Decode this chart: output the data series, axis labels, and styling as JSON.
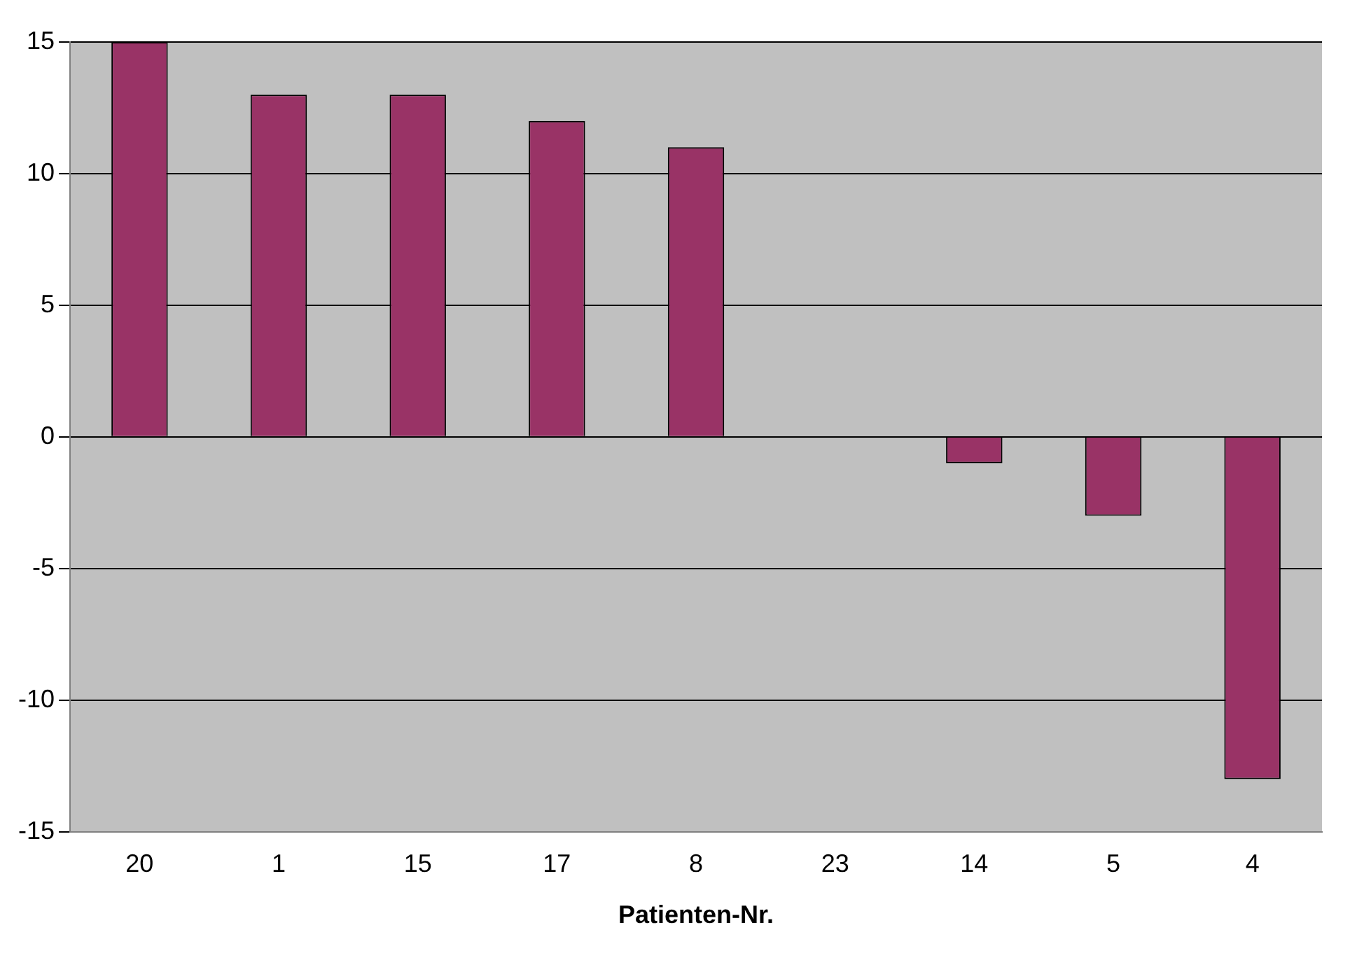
{
  "chart_data": {
    "type": "bar",
    "xlabel": "Patienten-Nr.",
    "categories": [
      "20",
      "1",
      "15",
      "17",
      "8",
      "23",
      "14",
      "5",
      "4"
    ],
    "values": [
      15,
      13,
      13,
      12,
      11,
      0,
      -1,
      -3,
      -13
    ],
    "color": "#993366",
    "ylim": [
      -15,
      15
    ],
    "yticks": [
      -15,
      -10,
      -5,
      0,
      5,
      10,
      15
    ],
    "grid": "y",
    "legend": false
  }
}
